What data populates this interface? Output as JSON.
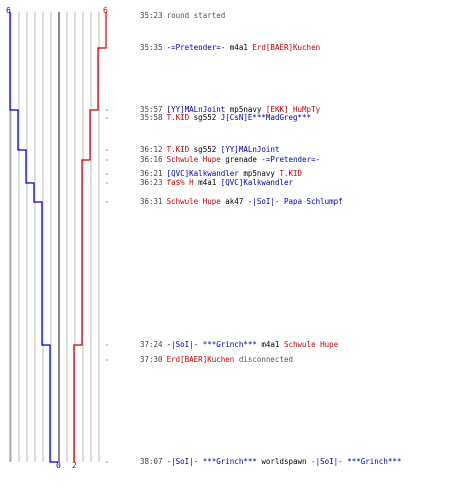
{
  "chart_data": {
    "type": "line",
    "title": "",
    "xlabel": "",
    "ylabel": "",
    "team_colors": {
      "blue": "#0000cc",
      "red": "#cc0000"
    },
    "start_scores": {
      "blue": "6",
      "red": "6"
    },
    "end_scores": {
      "blue": "0",
      "red": "2"
    },
    "series": [
      {
        "team": "blue",
        "color": "#0000cc",
        "points": [
          {
            "t": "35:23",
            "v": 6
          },
          {
            "t": "35:57",
            "v": 5
          },
          {
            "t": "36:12",
            "v": 4
          },
          {
            "t": "36:23",
            "v": 3
          },
          {
            "t": "36:31",
            "v": 2
          },
          {
            "t": "37:24",
            "v": 1
          },
          {
            "t": "38:07",
            "v": 0
          }
        ]
      },
      {
        "team": "red",
        "color": "#cc0000",
        "points": [
          {
            "t": "35:23",
            "v": 6
          },
          {
            "t": "35:35",
            "v": 5
          },
          {
            "t": "35:57",
            "v": 4
          },
          {
            "t": "36:16",
            "v": 3
          },
          {
            "t": "37:24",
            "v": 2
          }
        ]
      }
    ]
  },
  "events": [
    {
      "time": "35:23",
      "parts": [
        {
          "t": "round started",
          "c": "gray"
        }
      ]
    },
    {
      "time": "35:35",
      "parts": [
        {
          "t": "-=Pretender=-",
          "c": "blue"
        },
        {
          "t": " m4a1 ",
          "c": "blk"
        },
        {
          "t": "Erd[BAER]Kuchen",
          "c": "red"
        }
      ]
    },
    {
      "time": "35:57",
      "parts": [
        {
          "t": "[YY]MALnJoint",
          "c": "blue"
        },
        {
          "t": " mp5navy ",
          "c": "blk"
        },
        {
          "t": "[EKK] HuMpTy",
          "c": "red"
        }
      ]
    },
    {
      "time": "35:58",
      "parts": [
        {
          "t": "T.KID",
          "c": "red"
        },
        {
          "t": " sg552 ",
          "c": "blk"
        },
        {
          "t": "J[CsN]E***MadGreg***",
          "c": "blue"
        }
      ]
    },
    {
      "time": "36:12",
      "parts": [
        {
          "t": "T.KID",
          "c": "red"
        },
        {
          "t": " sg552 ",
          "c": "blk"
        },
        {
          "t": "[YY]MALnJoint",
          "c": "blue"
        }
      ]
    },
    {
      "time": "36:16",
      "parts": [
        {
          "t": "Schwule Hupe",
          "c": "red"
        },
        {
          "t": " grenade ",
          "c": "blk"
        },
        {
          "t": "-=Pretender=-",
          "c": "blue"
        }
      ]
    },
    {
      "time": "36:21",
      "parts": [
        {
          "t": "[QVC]Kalkwandler",
          "c": "blue"
        },
        {
          "t": " mp5navy ",
          "c": "blk"
        },
        {
          "t": "T.KID",
          "c": "red"
        }
      ]
    },
    {
      "time": "36:23",
      "parts": [
        {
          "t": "fa$% H",
          "c": "red"
        },
        {
          "t": " m4a1 ",
          "c": "blk"
        },
        {
          "t": "[QVC]Kalkwandler",
          "c": "blue"
        }
      ]
    },
    {
      "time": "36:31",
      "parts": [
        {
          "t": "Schwule Hupe",
          "c": "red"
        },
        {
          "t": " ak47 ",
          "c": "blk"
        },
        {
          "t": "-|SoI|- Papa Schlumpf",
          "c": "blue"
        }
      ]
    },
    {
      "time": "37:24",
      "parts": [
        {
          "t": "-|SoI|- ***Grinch***",
          "c": "blue"
        },
        {
          "t": " m4a1 ",
          "c": "blk"
        },
        {
          "t": "Schwule Hupe",
          "c": "red"
        }
      ]
    },
    {
      "time": "37:30",
      "parts": [
        {
          "t": "Erd[BAER]Kuchen",
          "c": "red"
        },
        {
          "t": " disconnected",
          "c": "gray"
        }
      ]
    },
    {
      "time": "38:07",
      "parts": [
        {
          "t": "-|SoI|- ***Grinch***",
          "c": "blue"
        },
        {
          "t": " worldspawn ",
          "c": "blk"
        },
        {
          "t": "-|SoI|- ***Grinch***",
          "c": "blue"
        }
      ]
    }
  ]
}
